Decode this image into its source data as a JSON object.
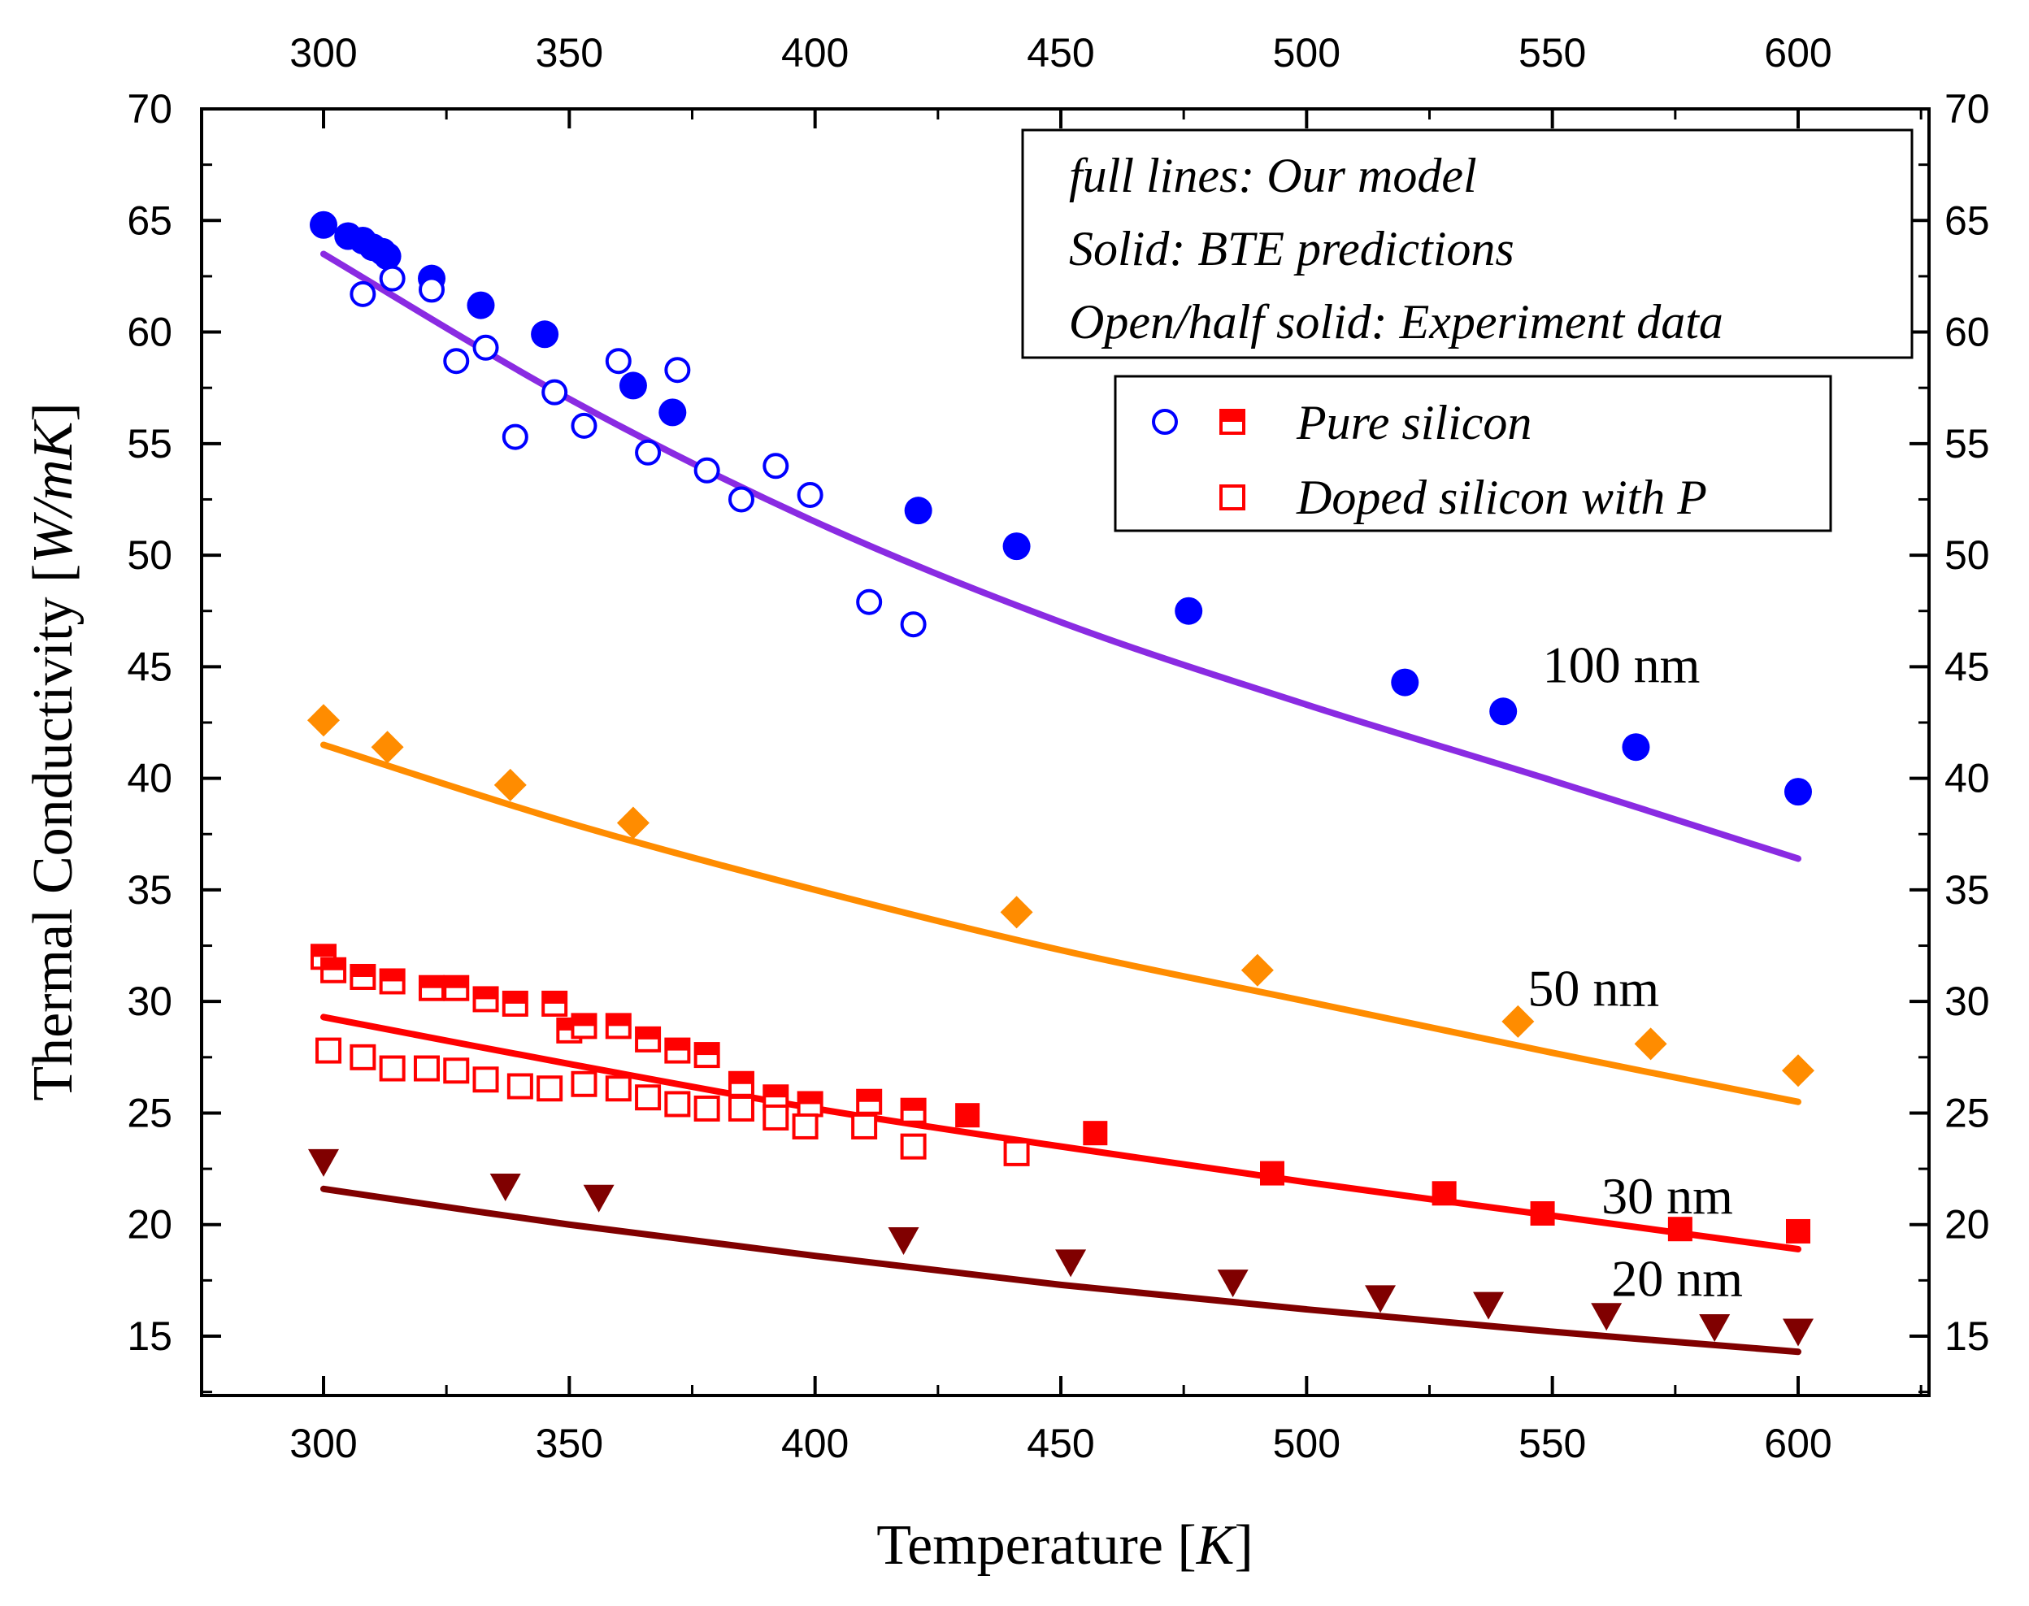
{
  "chart_data": {
    "type": "scatter",
    "xlabel": "Temperature [",
    "xlabel_unit": "K",
    "xlabel_close": "]",
    "ylabel": "Thermal Conductivity [",
    "ylabel_unit": "W/mK",
    "ylabel_close": "]",
    "xlim": [
      275,
      625
    ],
    "ylim": [
      12,
      70
    ],
    "xticks": [
      300,
      350,
      400,
      450,
      500,
      550,
      600
    ],
    "yticks": [
      15,
      20,
      25,
      30,
      35,
      40,
      45,
      50,
      55,
      60,
      65,
      70
    ],
    "info_box": [
      "full lines: Our model",
      "Solid: BTE predictions",
      "Open/half solid: Experiment data"
    ],
    "legend": {
      "location": "upper-right",
      "entries": [
        "Pure silicon",
        "Doped silicon with P"
      ]
    },
    "colors": {
      "c100": "#8a2be2",
      "c50": "#ff8c00",
      "c30": "#ff0000",
      "c20": "#800000",
      "blue": "#0000ff",
      "red": "#ff0000",
      "orange": "#ff8c00",
      "darkred": "#800000"
    },
    "model_curves": [
      {
        "name": "100 nm",
        "color": "c100",
        "x": [
          300,
          350,
          400,
          450,
          500,
          550,
          600
        ],
        "y": [
          63.5,
          57.0,
          51.5,
          47.0,
          43.3,
          39.9,
          36.4
        ]
      },
      {
        "name": "50 nm",
        "color": "c50",
        "x": [
          300,
          350,
          400,
          450,
          500,
          550,
          600
        ],
        "y": [
          41.5,
          38.0,
          35.0,
          32.3,
          30.0,
          27.7,
          25.5
        ]
      },
      {
        "name": "30 nm",
        "color": "c30",
        "x": [
          300,
          350,
          400,
          450,
          500,
          550,
          600
        ],
        "y": [
          29.3,
          27.2,
          25.2,
          23.5,
          21.9,
          20.4,
          18.9
        ]
      },
      {
        "name": "20 nm",
        "color": "c20",
        "x": [
          300,
          350,
          400,
          450,
          500,
          550,
          600
        ],
        "y": [
          21.6,
          20.0,
          18.6,
          17.3,
          16.2,
          15.2,
          14.3
        ]
      }
    ],
    "series": [
      {
        "name": "100 nm BTE predictions",
        "marker": "circle",
        "fill": "solid",
        "color": "blue",
        "x": [
          300,
          305,
          308,
          310,
          312,
          313,
          322,
          332,
          345,
          363,
          371,
          421,
          441,
          476,
          520,
          540,
          567,
          600
        ],
        "y": [
          64.8,
          64.3,
          64.1,
          63.8,
          63.6,
          63.4,
          62.4,
          61.2,
          59.9,
          57.6,
          56.4,
          52.0,
          50.4,
          47.5,
          44.3,
          43.0,
          41.4,
          39.4
        ]
      },
      {
        "name": "100 nm experiment",
        "marker": "circle",
        "fill": "open",
        "color": "blue",
        "x": [
          308,
          314,
          322,
          327,
          333,
          339,
          347,
          353,
          360,
          366,
          372,
          378,
          385,
          392,
          399,
          411,
          420
        ],
        "y": [
          61.7,
          62.4,
          61.9,
          58.7,
          59.3,
          55.3,
          57.3,
          55.8,
          58.7,
          54.6,
          58.3,
          53.8,
          52.5,
          54.0,
          52.7,
          47.9,
          46.9
        ]
      },
      {
        "name": "50 nm BTE predictions",
        "marker": "diamond",
        "fill": "solid",
        "color": "orange",
        "x": [
          300,
          313,
          338,
          363,
          441,
          490,
          543,
          570,
          600
        ],
        "y": [
          42.6,
          41.4,
          39.7,
          38.0,
          34.0,
          31.4,
          29.1,
          28.1,
          26.9
        ]
      },
      {
        "name": "30 nm BTE predictions",
        "marker": "square",
        "fill": "solid",
        "color": "red",
        "x": [
          431,
          457,
          493,
          528,
          548,
          576,
          600
        ],
        "y": [
          24.9,
          24.1,
          22.3,
          21.4,
          20.5,
          19.8,
          19.7
        ]
      },
      {
        "name": "Pure silicon experiment",
        "marker": "square",
        "fill": "half",
        "color": "red",
        "x": [
          300,
          302,
          308,
          314,
          322,
          327,
          333,
          339,
          347,
          350,
          353,
          360,
          366,
          372,
          378,
          385,
          392,
          399,
          411,
          420
        ],
        "y": [
          32.0,
          31.4,
          31.1,
          30.9,
          30.6,
          30.6,
          30.1,
          29.9,
          29.9,
          28.7,
          28.9,
          28.9,
          28.3,
          27.8,
          27.6,
          26.3,
          25.7,
          25.4,
          25.5,
          25.1
        ]
      },
      {
        "name": "Doped silicon with P experiment",
        "marker": "square",
        "fill": "open",
        "color": "red",
        "x": [
          301,
          308,
          314,
          321,
          327,
          333,
          340,
          346,
          353,
          360,
          366,
          372,
          378,
          385,
          392,
          398,
          410,
          420,
          441
        ],
        "y": [
          27.8,
          27.5,
          27.0,
          27.0,
          26.9,
          26.5,
          26.2,
          26.1,
          26.3,
          26.1,
          25.7,
          25.4,
          25.2,
          25.2,
          24.8,
          24.4,
          24.4,
          23.5,
          23.2
        ]
      },
      {
        "name": "20 nm BTE predictions",
        "marker": "triangle-down",
        "fill": "solid",
        "color": "darkred",
        "x": [
          300,
          337,
          356,
          418,
          452,
          485,
          515,
          537,
          561,
          583,
          600
        ],
        "y": [
          22.8,
          21.7,
          21.2,
          19.3,
          18.3,
          17.4,
          16.7,
          16.4,
          15.9,
          15.4,
          15.2
        ]
      }
    ],
    "curve_labels": [
      {
        "text": "100 nm",
        "x": 548,
        "y": 44.3
      },
      {
        "text": "50 nm",
        "x": 545,
        "y": 29.8
      },
      {
        "text": "30 nm",
        "x": 560,
        "y": 20.5
      },
      {
        "text": "20 nm",
        "x": 562,
        "y": 16.8
      }
    ]
  }
}
